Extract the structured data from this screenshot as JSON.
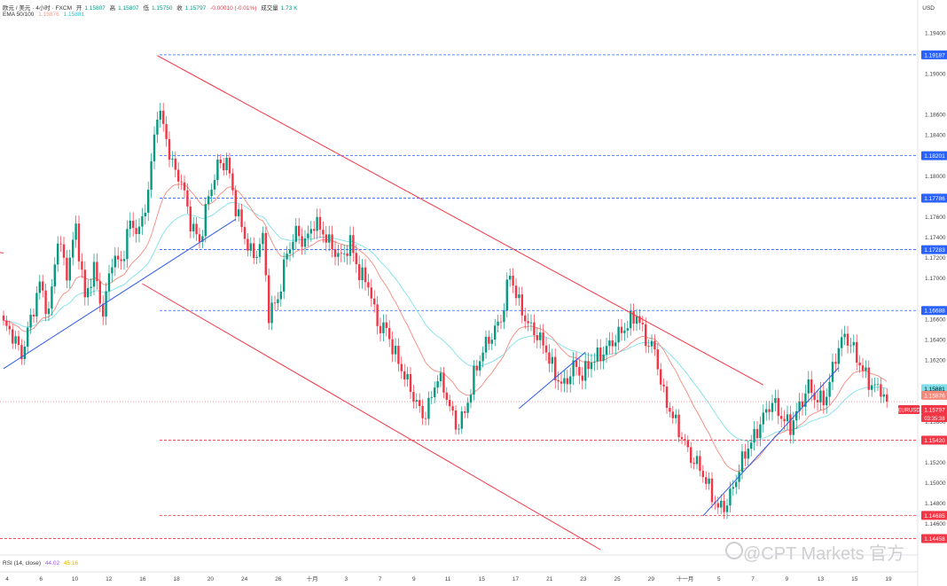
{
  "header": {
    "symbol": "欧元 / 美元 · 4小时 · FXCM",
    "open_label": "开",
    "open": "1.15807",
    "high_label": "高",
    "high": "1.15807",
    "low_label": "低",
    "low": "1.15750",
    "close_label": "收",
    "close": "1.15797",
    "change": "-0.00010 (-0.01%)",
    "volume_label": "成交量",
    "volume": "1.73 K",
    "ema_label": "EMA 50/100",
    "ema50": "1.15876",
    "ema100": "1.15881",
    "rsi_label": "RSI (14, close)",
    "rsi": "44.02",
    "rsi_ma": "45.16"
  },
  "currency": "USD",
  "watermark": "@CPT Markets 官方",
  "colors": {
    "up": "#089981",
    "down": "#f23645",
    "ema50": "#f48a7c",
    "ema100": "#7fe0ec",
    "trend_blue": "#2f5ee6",
    "channel_red": "#f23645",
    "level_blue": "#2962ff",
    "level_red": "#f23645"
  },
  "chart_data": {
    "type": "candlestick",
    "instrument": "EURUSD",
    "ylim": [
      1.1435,
      1.1955
    ],
    "y_ticks": [
      "1.19400",
      "1.19000",
      "1.18600",
      "1.18400",
      "1.18000",
      "1.17600",
      "1.17400",
      "1.17200",
      "1.17000",
      "1.16600",
      "1.16400",
      "1.16200",
      "1.15600",
      "1.15200",
      "1.15000",
      "1.14800",
      "1.14600"
    ],
    "x_ticks": [
      "4",
      "6",
      "10",
      "12",
      "16",
      "18",
      "20",
      "24",
      "26",
      "十月",
      "3",
      "7",
      "9",
      "11",
      "15",
      "17",
      "21",
      "23",
      "25",
      "29",
      "十一月",
      "5",
      "7",
      "9",
      "13",
      "15",
      "19"
    ],
    "price_lines": [
      {
        "label": "1.19187",
        "value": 1.19187,
        "color": "blue"
      },
      {
        "label": "1.18201",
        "value": 1.18201,
        "color": "blue"
      },
      {
        "label": "1.17786",
        "value": 1.17786,
        "color": "blue"
      },
      {
        "label": "1.17283",
        "value": 1.17283,
        "color": "blue"
      },
      {
        "label": "1.16688",
        "value": 1.16688,
        "color": "blue"
      },
      {
        "label": "1.15420",
        "value": 1.1542,
        "color": "red"
      },
      {
        "label": "1.14685",
        "value": 1.14685,
        "color": "red"
      },
      {
        "label": "1.14458",
        "value": 1.14458,
        "color": "red"
      }
    ],
    "current_labels": [
      {
        "label": "1.15881",
        "value": 1.15881,
        "color": "#7fe0ec"
      },
      {
        "label": "1.15876",
        "value": 1.15876,
        "color": "#f48a7c"
      },
      {
        "label": "1.15797",
        "value": 1.15797,
        "color": "#f23645",
        "tag": "EURUSD",
        "countdown": "03:35:38"
      }
    ],
    "anchors": [
      [
        0,
        1.1655
      ],
      [
        3,
        1.1645
      ],
      [
        6,
        1.1625
      ],
      [
        9,
        1.166
      ],
      [
        12,
        1.1695
      ],
      [
        15,
        1.1665
      ],
      [
        18,
        1.174
      ],
      [
        21,
        1.1705
      ],
      [
        24,
        1.175
      ],
      [
        27,
        1.168
      ],
      [
        30,
        1.171
      ],
      [
        33,
        1.1665
      ],
      [
        36,
        1.172
      ],
      [
        39,
        1.1715
      ],
      [
        42,
        1.1755
      ],
      [
        45,
        1.1745
      ],
      [
        48,
        1.1785
      ],
      [
        51,
        1.1865
      ],
      [
        53,
        1.185
      ],
      [
        56,
        1.181
      ],
      [
        59,
        1.1795
      ],
      [
        62,
        1.1755
      ],
      [
        65,
        1.1735
      ],
      [
        68,
        1.178
      ],
      [
        71,
        1.181
      ],
      [
        74,
        1.1815
      ],
      [
        77,
        1.177
      ],
      [
        80,
        1.174
      ],
      [
        83,
        1.172
      ],
      [
        86,
        1.174
      ],
      [
        88,
        1.1665
      ],
      [
        91,
        1.168
      ],
      [
        94,
        1.1725
      ],
      [
        97,
        1.1745
      ],
      [
        100,
        1.1735
      ],
      [
        103,
        1.1755
      ],
      [
        106,
        1.1745
      ],
      [
        109,
        1.173
      ],
      [
        112,
        1.172
      ],
      [
        115,
        1.1735
      ],
      [
        118,
        1.1705
      ],
      [
        121,
        1.1695
      ],
      [
        124,
        1.1655
      ],
      [
        127,
        1.165
      ],
      [
        130,
        1.1625
      ],
      [
        133,
        1.1605
      ],
      [
        136,
        1.1585
      ],
      [
        139,
        1.1565
      ],
      [
        141,
        1.1575
      ],
      [
        144,
        1.1605
      ],
      [
        147,
        1.1585
      ],
      [
        150,
        1.1555
      ],
      [
        153,
        1.1568
      ],
      [
        156,
        1.1605
      ],
      [
        159,
        1.163
      ],
      [
        162,
        1.1645
      ],
      [
        165,
        1.166
      ],
      [
        168,
        1.1705
      ],
      [
        171,
        1.1675
      ],
      [
        174,
        1.1655
      ],
      [
        177,
        1.1645
      ],
      [
        180,
        1.163
      ],
      [
        183,
        1.1605
      ],
      [
        186,
        1.1595
      ],
      [
        189,
        1.1615
      ],
      [
        192,
        1.1605
      ],
      [
        195,
        1.162
      ],
      [
        198,
        1.1625
      ],
      [
        201,
        1.1635
      ],
      [
        204,
        1.1645
      ],
      [
        207,
        1.1655
      ],
      [
        210,
        1.1665
      ],
      [
        213,
        1.164
      ],
      [
        216,
        1.163
      ],
      [
        219,
        1.1585
      ],
      [
        222,
        1.1565
      ],
      [
        225,
        1.1545
      ],
      [
        228,
        1.1525
      ],
      [
        231,
        1.1515
      ],
      [
        234,
        1.1495
      ],
      [
        237,
        1.1475
      ],
      [
        240,
        1.148
      ],
      [
        243,
        1.1505
      ],
      [
        246,
        1.153
      ],
      [
        249,
        1.1545
      ],
      [
        252,
        1.1565
      ],
      [
        255,
        1.158
      ],
      [
        258,
        1.1565
      ],
      [
        261,
        1.1555
      ],
      [
        264,
        1.1575
      ],
      [
        267,
        1.1595
      ],
      [
        270,
        1.158
      ],
      [
        273,
        1.1585
      ],
      [
        276,
        1.1625
      ],
      [
        279,
        1.1645
      ],
      [
        282,
        1.163
      ],
      [
        285,
        1.161
      ],
      [
        288,
        1.1595
      ],
      [
        291,
        1.1592
      ],
      [
        293,
        1.158
      ]
    ],
    "trendlines": [
      {
        "color": "blue",
        "from": [
          0,
          1.1612
        ],
        "to": [
          77,
          1.1758
        ]
      },
      {
        "color": "blue",
        "from": [
          171,
          1.1573
        ],
        "to": [
          193,
          1.1628
        ]
      },
      {
        "color": "blue",
        "from": [
          232,
          1.1468
        ],
        "to": [
          277,
          1.1613
        ]
      },
      {
        "color": "red",
        "from": [
          51,
          1.1918
        ],
        "to": [
          252,
          1.1596
        ]
      },
      {
        "color": "red",
        "from": [
          46,
          1.1695
        ],
        "to": [
          198,
          1.1435
        ]
      },
      {
        "color": "red",
        "from": [
          -8,
          1.1728
        ],
        "to": [
          0,
          1.1725
        ]
      }
    ]
  }
}
